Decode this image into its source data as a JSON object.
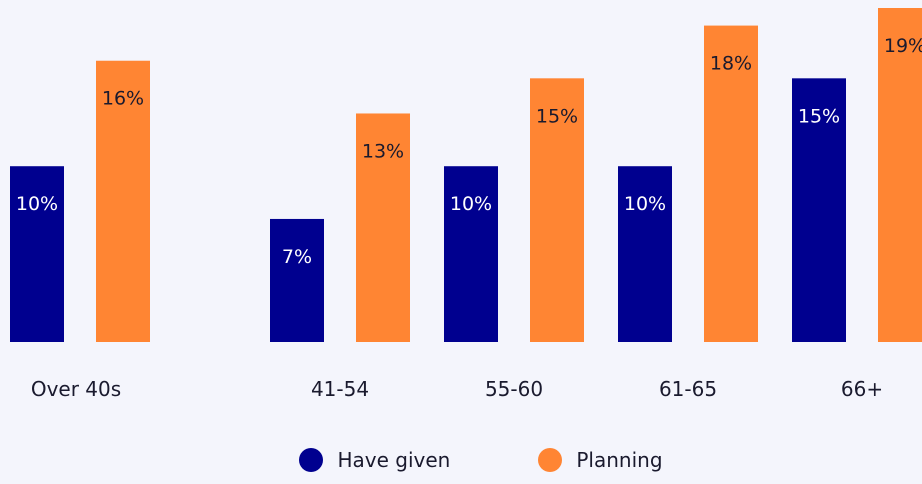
{
  "chart_data": {
    "type": "bar",
    "categories": [
      "Over 40s",
      "41-54",
      "55-60",
      "61-65",
      "66+"
    ],
    "series": [
      {
        "name": "Have given",
        "values": [
          10,
          7,
          10,
          10,
          15
        ],
        "labels": [
          "10%",
          "7%",
          "10%",
          "10%",
          "15%"
        ],
        "color": "#00008f"
      },
      {
        "name": "Planning",
        "values": [
          16,
          13,
          15,
          18,
          19
        ],
        "labels": [
          "16%",
          "13%",
          "15%",
          "18%",
          "19%"
        ],
        "color": "#ff8533"
      }
    ],
    "ylim": [
      0,
      19
    ],
    "grid": false,
    "legend_placement": "bottom-center",
    "title": "",
    "xlabel": "",
    "ylabel": ""
  },
  "colors": {
    "background": "#f4f5fc",
    "label_on_dark": "#ffffff",
    "label_on_light": "#1a1a2e",
    "axis_text": "#1a1a2e"
  }
}
